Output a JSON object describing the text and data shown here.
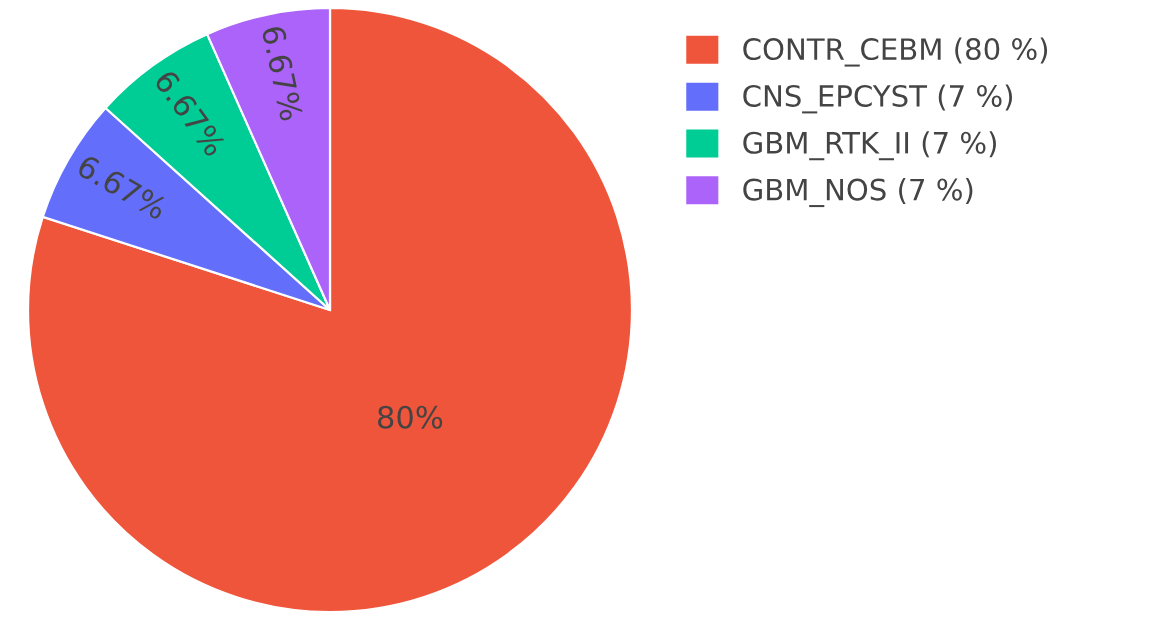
{
  "chart_data": {
    "type": "pie",
    "categories": [
      "CONTR_CEBM (80 %)",
      "CNS_EPCYST (7 %)",
      "GBM_RTK_II (7 %)",
      "GBM_NOS (7 %)"
    ],
    "values": [
      80,
      6.67,
      6.67,
      6.67
    ],
    "colors": [
      "#ef553b",
      "#636efa",
      "#00cc96",
      "#ab63fa"
    ],
    "value_labels": [
      "80%",
      "6.67%",
      "6.67%",
      "6.67%"
    ],
    "legend": "top right"
  }
}
